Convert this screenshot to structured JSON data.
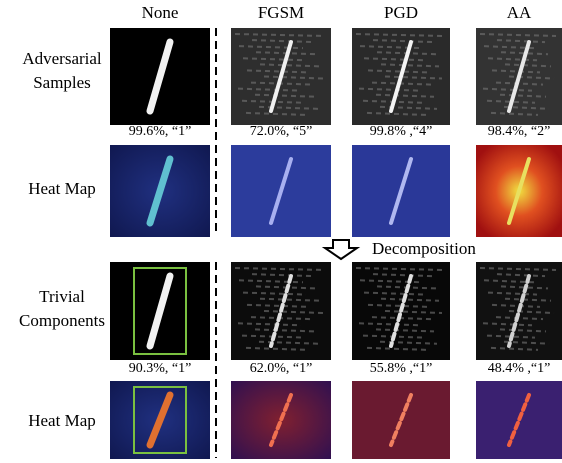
{
  "headers": [
    "None",
    "FGSM",
    "PGD",
    "AA"
  ],
  "row_labels": [
    [
      "Adversarial",
      "Samples"
    ],
    [
      "Heat Map"
    ],
    [
      "Trivial",
      "Components"
    ],
    [
      "Heat Map"
    ]
  ],
  "captions": {
    "adversarial": [
      "99.6%, “1”",
      "72.0%, “5”",
      "99.8% ,“4”",
      "98.4%, “2”"
    ],
    "trivial": [
      "90.3%, “1”",
      "62.0%, “1”",
      "55.8% ,“1”",
      "48.4% ,“1”"
    ]
  },
  "arrow_label": "Decomposition"
}
